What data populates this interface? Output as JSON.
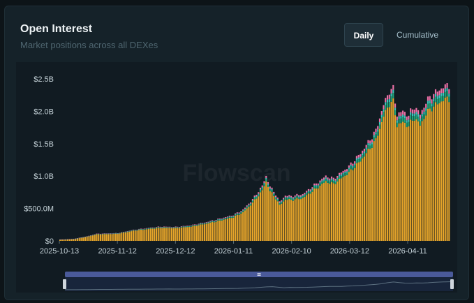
{
  "header": {
    "title": "Open Interest",
    "subtitle": "Market positions across all DEXes"
  },
  "toggle": {
    "daily_label": "Daily",
    "cumulative_label": "Cumulative",
    "selected": "Daily"
  },
  "watermark": "Flowscan",
  "navigator": {
    "handle_glyph": "≡"
  },
  "colors": {
    "bar_main": "#e6a52a",
    "bar_green": "#1fa67a",
    "bar_teal": "#3cc6bd",
    "bar_pink": "#ec6fa6",
    "background": "#0d1418",
    "card": "#152229"
  },
  "chart_data": {
    "type": "bar",
    "stacked": true,
    "title": "Open Interest",
    "subtitle": "Market positions across all DEXes",
    "x_tick_labels": [
      "2025-10-13",
      "2025-11-12",
      "2025-12-12",
      "2026-01-11",
      "2026-02-10",
      "2026-03-12",
      "2026-04-11"
    ],
    "y_tick_labels": [
      "$0",
      "$500.0M",
      "$1.0B",
      "$1.5B",
      "$2.0B",
      "$2.5B"
    ],
    "y_tick_values": [
      0,
      500,
      1000,
      1500,
      2000,
      2500
    ],
    "y_unit": "USD millions",
    "ylim": [
      0,
      2500
    ],
    "x_start": "2025-10-13",
    "x_end": "2026-05-03",
    "grid": false,
    "anchors_total_millions": [
      [
        "2025-10-13",
        20
      ],
      [
        "2025-10-20",
        30
      ],
      [
        "2025-10-27",
        70
      ],
      [
        "2025-11-01",
        110
      ],
      [
        "2025-11-12",
        120
      ],
      [
        "2025-11-20",
        170
      ],
      [
        "2025-11-28",
        200
      ],
      [
        "2025-12-04",
        220
      ],
      [
        "2025-12-12",
        215
      ],
      [
        "2025-12-20",
        240
      ],
      [
        "2025-12-28",
        290
      ],
      [
        "2026-01-05",
        350
      ],
      [
        "2026-01-11",
        400
      ],
      [
        "2026-01-16",
        480
      ],
      [
        "2026-01-21",
        640
      ],
      [
        "2026-01-26",
        850
      ],
      [
        "2026-01-28",
        1000
      ],
      [
        "2026-01-30",
        840
      ],
      [
        "2026-02-02",
        720
      ],
      [
        "2026-02-04",
        600
      ],
      [
        "2026-02-07",
        700
      ],
      [
        "2026-02-10",
        690
      ],
      [
        "2026-02-16",
        720
      ],
      [
        "2026-02-22",
        860
      ],
      [
        "2026-02-28",
        1000
      ],
      [
        "2026-03-04",
        960
      ],
      [
        "2026-03-12",
        1150
      ],
      [
        "2026-03-18",
        1350
      ],
      [
        "2026-03-22",
        1520
      ],
      [
        "2026-03-26",
        1700
      ],
      [
        "2026-03-30",
        2100
      ],
      [
        "2026-04-02",
        2320
      ],
      [
        "2026-04-04",
        2340
      ],
      [
        "2026-04-06",
        1950
      ],
      [
        "2026-04-09",
        2000
      ],
      [
        "2026-04-12",
        1940
      ],
      [
        "2026-04-15",
        2080
      ],
      [
        "2026-04-18",
        1950
      ],
      [
        "2026-04-21",
        2140
      ],
      [
        "2026-04-24",
        2250
      ],
      [
        "2026-04-27",
        2310
      ],
      [
        "2026-04-30",
        2380
      ],
      [
        "2026-05-03",
        2400
      ]
    ],
    "series": [
      {
        "color": "#e6a52a",
        "share": 0.915
      },
      {
        "color": "#1fa67a",
        "share": 0.035
      },
      {
        "color": "#3cc6bd",
        "share": 0.02
      },
      {
        "color": "#ec6fa6",
        "share": 0.03
      }
    ]
  }
}
